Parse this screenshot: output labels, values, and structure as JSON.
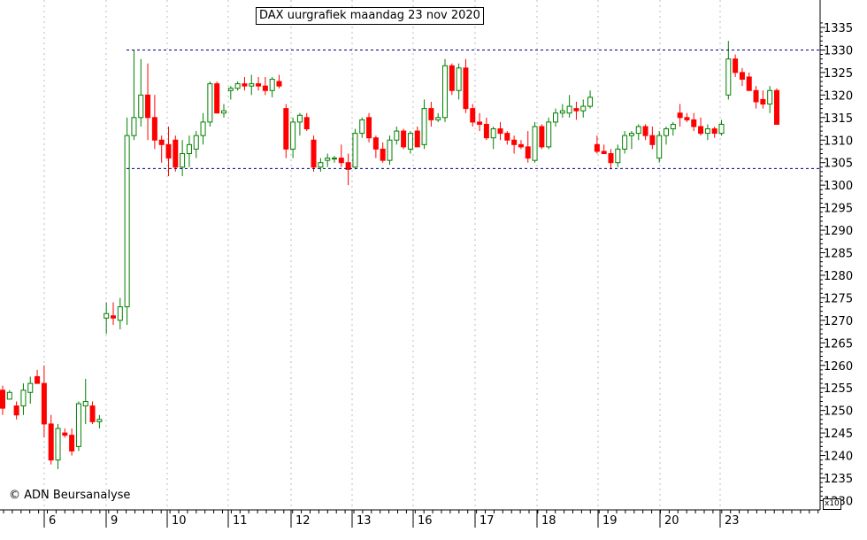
{
  "chart_data": {
    "type": "candlestick",
    "title": "DAX uurgrafiek maandag 23 nov 2020",
    "copyright": "© ADN Beursanalyse",
    "scale_note": "x10",
    "y_axis_side": "right",
    "ylim": [
      12300,
      13360
    ],
    "y_ticks": [
      12300,
      12350,
      12400,
      12450,
      12500,
      12550,
      12600,
      12650,
      12700,
      12750,
      12800,
      12850,
      12900,
      12950,
      13000,
      13050,
      13100,
      13150,
      13200,
      13250,
      13300,
      13350
    ],
    "y_tick_labels": [
      "1230",
      "1235",
      "1240",
      "1245",
      "1250",
      "1255",
      "1260",
      "1265",
      "1270",
      "1275",
      "1280",
      "1285",
      "1290",
      "1295",
      "1300",
      "1305",
      "1310",
      "1315",
      "1320",
      "1325",
      "1330",
      "1335"
    ],
    "x_day_labels": [
      "6",
      "9",
      "10",
      "11",
      "12",
      "13",
      "16",
      "17",
      "18",
      "19",
      "20",
      "23"
    ],
    "grid": "vertical-dotted-at-day-starts",
    "bull_color": "#008000",
    "bear_color": "#ff0000",
    "lines": [
      {
        "level": 13300,
        "style": "dashed"
      },
      {
        "level": 13037,
        "style": "dashed"
      }
    ],
    "candles": [
      [
        12545,
        12555,
        12490,
        12505
      ],
      [
        12525,
        12545,
        12525,
        12540
      ],
      [
        12510,
        12520,
        12480,
        12490
      ],
      [
        12510,
        12560,
        12490,
        12545
      ],
      [
        12540,
        12575,
        12515,
        12560
      ],
      [
        12575,
        12590,
        12560,
        12560
      ],
      [
        12560,
        12600,
        12440,
        12470
      ],
      [
        12470,
        12490,
        12380,
        12390
      ],
      [
        12390,
        12470,
        12370,
        12460
      ],
      [
        12450,
        12460,
        12440,
        12445
      ],
      [
        12445,
        12460,
        12400,
        12410
      ],
      [
        12420,
        12520,
        12410,
        12515
      ],
      [
        12510,
        12570,
        12470,
        12520
      ],
      [
        12510,
        12520,
        12470,
        12475
      ],
      [
        12475,
        12490,
        12460,
        12480
      ],
      [
        12705,
        12740,
        12670,
        12715
      ],
      [
        12710,
        12740,
        12690,
        12705
      ],
      [
        12700,
        12750,
        12680,
        12730
      ],
      [
        12730,
        13150,
        12690,
        13110
      ],
      [
        13110,
        13300,
        13100,
        13150
      ],
      [
        13150,
        13280,
        13130,
        13200
      ],
      [
        13200,
        13270,
        13100,
        13150
      ],
      [
        13150,
        13200,
        13080,
        13100
      ],
      [
        13100,
        13110,
        13050,
        13090
      ],
      [
        13090,
        13130,
        13020,
        13060
      ],
      [
        13100,
        13110,
        13030,
        13040
      ],
      [
        13040,
        13100,
        13020,
        13070
      ],
      [
        13070,
        13110,
        13040,
        13090
      ],
      [
        13080,
        13120,
        13060,
        13110
      ],
      [
        13110,
        13160,
        13090,
        13140
      ],
      [
        13140,
        13230,
        13130,
        13225
      ],
      [
        13225,
        13230,
        13160,
        13160
      ],
      [
        13160,
        13180,
        13150,
        13165
      ],
      [
        13210,
        13220,
        13190,
        13215
      ],
      [
        13215,
        13230,
        13210,
        13225
      ],
      [
        13225,
        13240,
        13210,
        13220
      ],
      [
        13220,
        13245,
        13200,
        13225
      ],
      [
        13225,
        13240,
        13210,
        13220
      ],
      [
        13220,
        13240,
        13200,
        13210
      ],
      [
        13210,
        13240,
        13195,
        13235
      ],
      [
        13230,
        13245,
        13215,
        13220
      ],
      [
        13170,
        13180,
        13060,
        13080
      ],
      [
        13080,
        13150,
        13060,
        13140
      ],
      [
        13140,
        13160,
        13110,
        13155
      ],
      [
        13150,
        13160,
        13120,
        13125
      ],
      [
        13100,
        13110,
        13030,
        13040
      ],
      [
        13040,
        13060,
        13030,
        13050
      ],
      [
        13055,
        13070,
        13040,
        13060
      ],
      [
        13060,
        13065,
        13050,
        13060
      ],
      [
        13060,
        13090,
        13040,
        13050
      ],
      [
        13050,
        13070,
        13000,
        13035
      ],
      [
        13040,
        13125,
        13035,
        13115
      ],
      [
        13115,
        13150,
        13105,
        13145
      ],
      [
        13150,
        13160,
        13095,
        13105
      ],
      [
        13105,
        13110,
        13060,
        13080
      ],
      [
        13080,
        13095,
        13050,
        13055
      ],
      [
        13055,
        13110,
        13045,
        13100
      ],
      [
        13100,
        13130,
        13090,
        13120
      ],
      [
        13120,
        13125,
        13080,
        13085
      ],
      [
        13080,
        13120,
        13070,
        13115
      ],
      [
        13120,
        13130,
        13090,
        13085
      ],
      [
        13090,
        13190,
        13080,
        13170
      ],
      [
        13170,
        13185,
        13130,
        13145
      ],
      [
        13145,
        13160,
        13140,
        13150
      ],
      [
        13150,
        13280,
        13140,
        13265
      ],
      [
        13265,
        13270,
        13200,
        13210
      ],
      [
        13210,
        13270,
        13190,
        13260
      ],
      [
        13260,
        13280,
        13160,
        13170
      ],
      [
        13170,
        13180,
        13130,
        13140
      ],
      [
        13140,
        13160,
        13120,
        13135
      ],
      [
        13135,
        13150,
        13100,
        13105
      ],
      [
        13105,
        13130,
        13080,
        13125
      ],
      [
        13125,
        13140,
        13100,
        13115
      ],
      [
        13115,
        13120,
        13090,
        13100
      ],
      [
        13100,
        13110,
        13070,
        13090
      ],
      [
        13090,
        13100,
        13080,
        13085
      ],
      [
        13085,
        13120,
        13050,
        13060
      ],
      [
        13055,
        13140,
        13050,
        13130
      ],
      [
        13130,
        13135,
        13080,
        13085
      ],
      [
        13085,
        13150,
        13080,
        13140
      ],
      [
        13140,
        13170,
        13130,
        13160
      ],
      [
        13160,
        13180,
        13150,
        13165
      ],
      [
        13160,
        13200,
        13150,
        13175
      ],
      [
        13170,
        13185,
        13145,
        13165
      ],
      [
        13165,
        13190,
        13150,
        13175
      ],
      [
        13175,
        13210,
        13170,
        13195
      ],
      [
        13090,
        13110,
        13070,
        13075
      ],
      [
        13075,
        13090,
        13070,
        13070
      ],
      [
        13070,
        13080,
        13035,
        13050
      ],
      [
        13050,
        13090,
        13040,
        13080
      ],
      [
        13080,
        13120,
        13070,
        13110
      ],
      [
        13110,
        13120,
        13080,
        13115
      ],
      [
        13115,
        13135,
        13100,
        13130
      ],
      [
        13130,
        13135,
        13100,
        13110
      ],
      [
        13110,
        13130,
        13080,
        13090
      ],
      [
        13060,
        13120,
        13050,
        13110
      ],
      [
        13110,
        13130,
        13090,
        13125
      ],
      [
        13125,
        13140,
        13110,
        13135
      ],
      [
        13160,
        13180,
        13130,
        13150
      ],
      [
        13150,
        13160,
        13140,
        13145
      ],
      [
        13145,
        13160,
        13120,
        13130
      ],
      [
        13130,
        13150,
        13110,
        13115
      ],
      [
        13115,
        13135,
        13100,
        13125
      ],
      [
        13125,
        13130,
        13105,
        13115
      ],
      [
        13115,
        13145,
        13110,
        13135
      ],
      [
        13200,
        13320,
        13190,
        13280
      ],
      [
        13280,
        13290,
        13240,
        13250
      ],
      [
        13250,
        13260,
        13220,
        13235
      ],
      [
        13240,
        13250,
        13210,
        13210
      ],
      [
        13210,
        13220,
        13170,
        13185
      ],
      [
        13190,
        13210,
        13170,
        13180
      ],
      [
        13180,
        13220,
        13160,
        13210
      ],
      [
        13210,
        13215,
        13135,
        13135
      ]
    ]
  }
}
